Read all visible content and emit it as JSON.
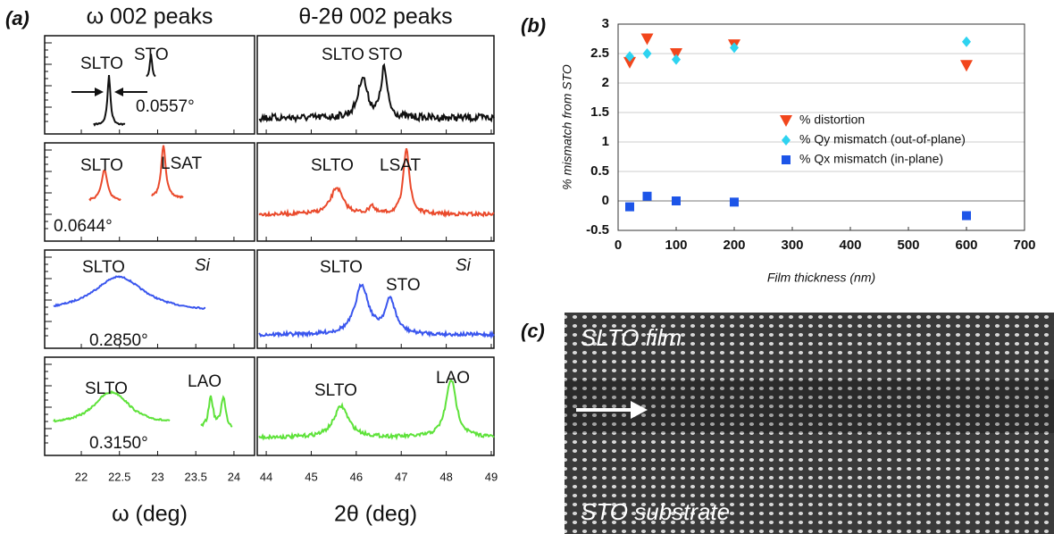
{
  "panel_labels": [
    "(a)",
    "(b)",
    "(c)"
  ],
  "chart_data": [
    {
      "type": "spectra",
      "title": "ω 002 peaks",
      "x_label": "ω (deg)",
      "xlim": [
        21.52,
        24.27
      ],
      "xticks": [
        22,
        22.5,
        23,
        23.5,
        24
      ],
      "subplots": [
        {
          "color": "#111111",
          "annotations": [
            "SLTO",
            "STO",
            "0.0557°"
          ]
        },
        {
          "color": "#ea4a2c",
          "annotations": [
            "SLTO",
            "LSAT",
            "0.0644°"
          ]
        },
        {
          "color": "#3a56ee",
          "annotations": [
            "SLTO",
            "Si",
            "0.2850°"
          ]
        },
        {
          "color": "#5ee23a",
          "annotations": [
            "SLTO",
            "LAO",
            "0.3150°"
          ]
        }
      ]
    },
    {
      "type": "spectra",
      "title": "θ-2θ 002 peaks",
      "x_label": "2θ (deg)",
      "xlim": [
        43.8,
        49.06
      ],
      "xticks": [
        44,
        45,
        46,
        47,
        48,
        49
      ],
      "subplots": [
        {
          "color": "#111111",
          "annotations": [
            "SLTO",
            "STO"
          ]
        },
        {
          "color": "#ea4a2c",
          "annotations": [
            "SLTO",
            "LSAT"
          ]
        },
        {
          "color": "#3a56ee",
          "annotations": [
            "SLTO",
            "STO",
            "Si"
          ]
        },
        {
          "color": "#5ee23a",
          "annotations": [
            "SLTO",
            "LAO"
          ]
        }
      ]
    },
    {
      "type": "scatter",
      "x_label": "Film thickness (nm)",
      "y_label": "% mismatch from STO",
      "xlim": [
        0,
        700
      ],
      "xticks": [
        0,
        100,
        200,
        300,
        400,
        500,
        600,
        700
      ],
      "ylim": [
        -0.5,
        3
      ],
      "yticks": [
        -0.5,
        0,
        0.5,
        1,
        1.5,
        2,
        2.5,
        3
      ],
      "grid": true,
      "series": [
        {
          "name": "% distortion",
          "color": "#f2461c",
          "marker": "triangle",
          "x": [
            20,
            50,
            100,
            200,
            600
          ],
          "values": [
            2.35,
            2.75,
            2.5,
            2.65,
            2.3
          ]
        },
        {
          "name": "% Qy mismatch (out-of-plane)",
          "color": "#2ed3f0",
          "marker": "diamond",
          "x": [
            20,
            50,
            100,
            200,
            600
          ],
          "values": [
            2.45,
            2.5,
            2.4,
            2.6,
            2.7
          ]
        },
        {
          "name": "% Qx mismatch (in-plane)",
          "color": "#1d55e8",
          "marker": "square",
          "x": [
            20,
            50,
            100,
            200,
            600
          ],
          "values": [
            -0.1,
            0.08,
            0,
            -0.02,
            -0.25
          ]
        }
      ]
    }
  ],
  "image": {
    "top_label": "SLTO film",
    "bottom_label": "STO substrate"
  }
}
